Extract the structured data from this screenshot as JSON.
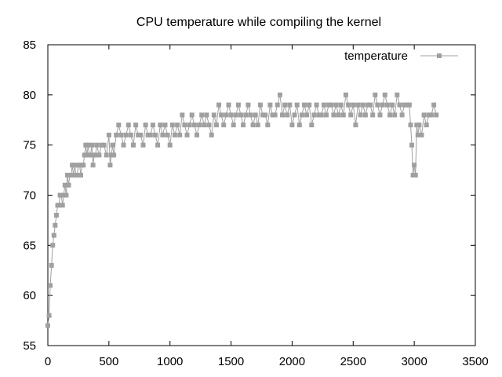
{
  "chart_data": {
    "type": "line",
    "title": "CPU temperature while compiling the kernel",
    "xlabel": "",
    "ylabel": "",
    "xlim": [
      0,
      3500
    ],
    "ylim": [
      55,
      85
    ],
    "x_ticks": [
      0,
      500,
      1000,
      1500,
      2000,
      2500,
      3000,
      3500
    ],
    "y_ticks": [
      55,
      60,
      65,
      70,
      75,
      80,
      85
    ],
    "grid": false,
    "legend_position": "top-right",
    "series": [
      {
        "name": "temperature",
        "color": "#a0a0a0",
        "marker": "square",
        "x": [
          0,
          10,
          20,
          30,
          40,
          50,
          60,
          70,
          80,
          90,
          100,
          110,
          120,
          130,
          140,
          150,
          160,
          170,
          180,
          190,
          200,
          210,
          220,
          230,
          240,
          250,
          260,
          270,
          280,
          290,
          300,
          310,
          320,
          330,
          340,
          350,
          360,
          370,
          380,
          390,
          400,
          420,
          440,
          460,
          480,
          500,
          510,
          520,
          530,
          540,
          560,
          580,
          600,
          620,
          640,
          660,
          680,
          700,
          720,
          740,
          760,
          780,
          800,
          820,
          840,
          860,
          880,
          900,
          920,
          940,
          960,
          980,
          1000,
          1020,
          1040,
          1060,
          1080,
          1100,
          1120,
          1140,
          1160,
          1180,
          1200,
          1220,
          1240,
          1260,
          1280,
          1300,
          1320,
          1340,
          1360,
          1380,
          1400,
          1420,
          1440,
          1460,
          1480,
          1500,
          1520,
          1540,
          1560,
          1580,
          1600,
          1620,
          1640,
          1660,
          1680,
          1700,
          1720,
          1740,
          1760,
          1780,
          1800,
          1820,
          1840,
          1860,
          1880,
          1900,
          1920,
          1940,
          1960,
          1980,
          2000,
          2020,
          2040,
          2060,
          2080,
          2100,
          2120,
          2140,
          2160,
          2180,
          2200,
          2220,
          2240,
          2260,
          2280,
          2300,
          2320,
          2340,
          2360,
          2380,
          2400,
          2420,
          2440,
          2460,
          2480,
          2500,
          2520,
          2540,
          2560,
          2580,
          2600,
          2620,
          2640,
          2660,
          2680,
          2700,
          2720,
          2740,
          2760,
          2780,
          2800,
          2820,
          2840,
          2860,
          2880,
          2900,
          2920,
          2940,
          2950,
          2960,
          2970,
          2980,
          2990,
          3000,
          3010,
          3020,
          3030,
          3040,
          3060,
          3080,
          3100,
          3120,
          3140,
          3160,
          3180
        ],
        "y": [
          57,
          58,
          61,
          63,
          65,
          66,
          67,
          68,
          69,
          69,
          70,
          70,
          69,
          70,
          71,
          70,
          72,
          71,
          72,
          72,
          73,
          72,
          73,
          72,
          72,
          73,
          73,
          72,
          73,
          73,
          74,
          75,
          74,
          75,
          74,
          74,
          75,
          73,
          74,
          74,
          75,
          74,
          75,
          75,
          74,
          76,
          73,
          74,
          75,
          74,
          76,
          77,
          76,
          75,
          76,
          77,
          76,
          75,
          77,
          76,
          76,
          75,
          77,
          76,
          76,
          77,
          76,
          75,
          77,
          76,
          77,
          76,
          75,
          77,
          76,
          77,
          76,
          78,
          77,
          76,
          77,
          78,
          77,
          76,
          77,
          78,
          77,
          78,
          77,
          76,
          78,
          77,
          79,
          78,
          77,
          78,
          79,
          78,
          77,
          78,
          79,
          78,
          77,
          78,
          79,
          78,
          77,
          78,
          77,
          79,
          78,
          78,
          77,
          79,
          78,
          78,
          79,
          80,
          78,
          79,
          78,
          79,
          77,
          78,
          79,
          77,
          78,
          79,
          78,
          79,
          77,
          78,
          79,
          78,
          78,
          79,
          78,
          79,
          79,
          78,
          79,
          78,
          79,
          78,
          80,
          79,
          78,
          79,
          77,
          79,
          78,
          79,
          78,
          79,
          79,
          78,
          80,
          79,
          78,
          79,
          80,
          79,
          78,
          79,
          78,
          80,
          79,
          78,
          79,
          79,
          79,
          79,
          77,
          75,
          72,
          73,
          72,
          77,
          76,
          77,
          76,
          78,
          77,
          78,
          78,
          79,
          78
        ],
        "values_note": ""
      }
    ]
  }
}
